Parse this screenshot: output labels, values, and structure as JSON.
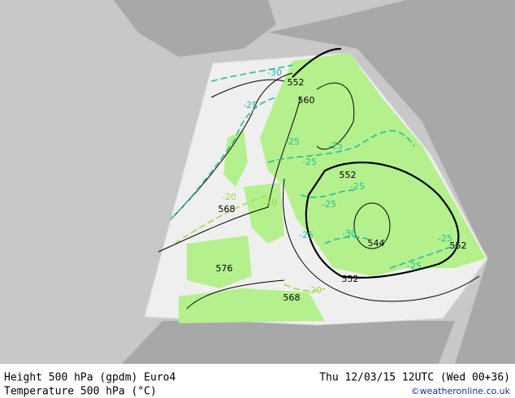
{
  "map": {
    "height_labels": [
      "552",
      "560",
      "552",
      "568",
      "576",
      "568",
      "544",
      "552",
      "552"
    ],
    "temperature_labels": [
      "-30",
      "-25",
      "-25",
      "-25",
      "-25",
      "-25",
      "-25",
      "-20",
      "-20",
      "-25",
      "-30",
      "-25",
      "-25",
      "-20"
    ]
  },
  "footer": {
    "line1_left": "Height 500 hPa (gpdm) Euro4",
    "line2_left": "Temperature 500 hPa (°C)",
    "line1_right": "Thu 12/03/15 12UTC (Wed 00+36)",
    "line2_right": "©weatheronline.co.uk"
  }
}
